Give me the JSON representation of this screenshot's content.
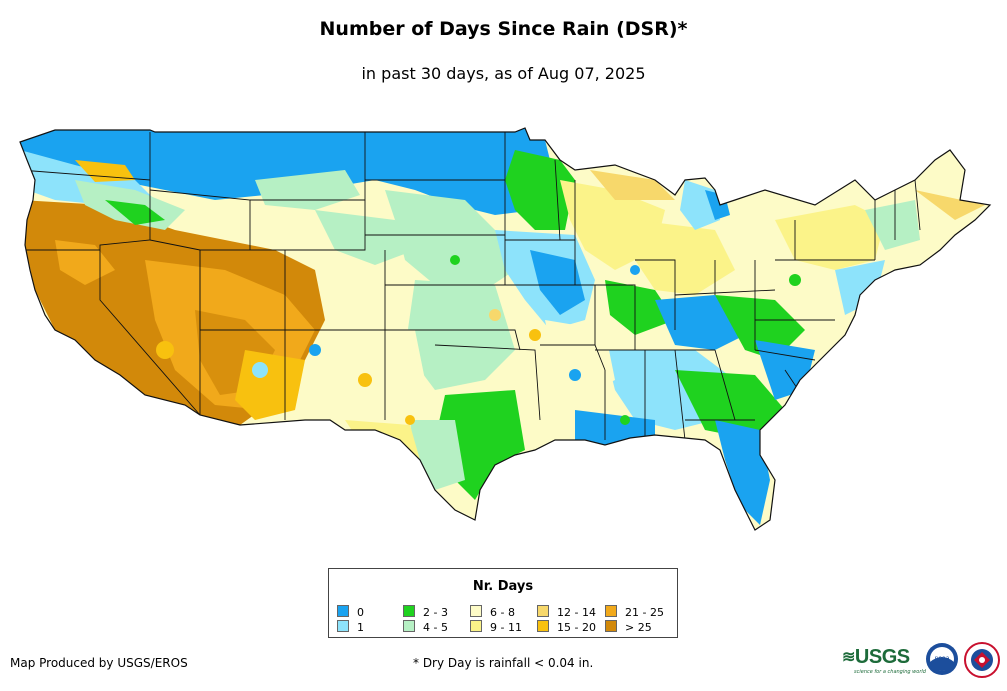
{
  "title": "Number of Days Since Rain (DSR)*",
  "subtitle": "in past 30 days, as of Aug 07, 2025",
  "legend": {
    "title": "Nr. Days",
    "items": [
      {
        "label": "0",
        "color": "#1aa3f0"
      },
      {
        "label": "1",
        "color": "#8de3fb"
      },
      {
        "label": "2 - 3",
        "color": "#1fd21f"
      },
      {
        "label": "4 - 5",
        "color": "#b6f0c4"
      },
      {
        "label": "6 - 8",
        "color": "#fdfbc7"
      },
      {
        "label": "9 - 11",
        "color": "#fbf389"
      },
      {
        "label": "12 - 14",
        "color": "#f7d86b"
      },
      {
        "label": "15 - 20",
        "color": "#f8c10f"
      },
      {
        "label": "21 - 25",
        "color": "#f1a91b"
      },
      {
        "label": "> 25",
        "color": "#d2890a"
      }
    ]
  },
  "footer": {
    "credit": "Map Produced by USGS/EROS",
    "note": "* Dry Day is rainfall < 0.04 in."
  },
  "logos": {
    "usgs": "USGS",
    "usgs_tagline": "science for a changing world",
    "noaa": "noaa",
    "nws": "National Weather Service"
  }
}
